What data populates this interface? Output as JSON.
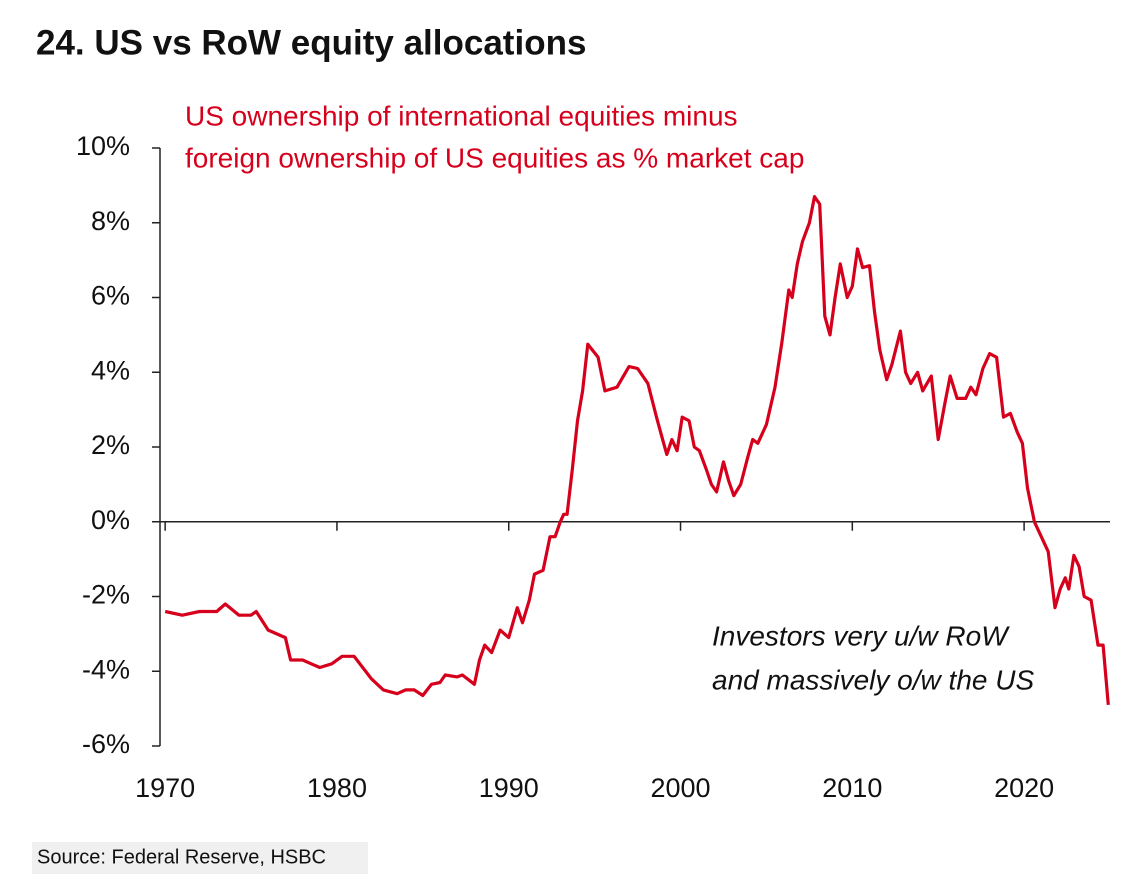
{
  "chart_data": {
    "type": "line",
    "title": "24. US vs RoW equity allocations",
    "subtitle": [
      "US ownership of international equities minus",
      "foreign ownership of US equities as % market cap"
    ],
    "annotation": [
      "Investors very u/w RoW",
      "and massively o/w the US"
    ],
    "source": "Source: Federal Reserve, HSBC",
    "color": "#d6001c",
    "xlim": [
      1969.7,
      2025.0
    ],
    "xticks": [
      1970,
      1980,
      1990,
      2000,
      2010,
      2020
    ],
    "ylim": [
      -6,
      10
    ],
    "yticks": [
      {
        "value": 10,
        "label": "10%"
      },
      {
        "value": 8,
        "label": "8%"
      },
      {
        "value": 6,
        "label": "6%"
      },
      {
        "value": 4,
        "label": "4%"
      },
      {
        "value": 2,
        "label": "2%"
      },
      {
        "value": 0,
        "label": "0%"
      },
      {
        "value": -2,
        "label": "-2%"
      },
      {
        "value": -4,
        "label": "-4%"
      },
      {
        "value": -6,
        "label": "-6%"
      }
    ],
    "x": [
      1970,
      1971,
      1972,
      1973,
      1973.5,
      1974.3,
      1975,
      1975.3,
      1976,
      1976.5,
      1977,
      1977.3,
      1978,
      1978.5,
      1979,
      1979.7,
      1980.3,
      1981,
      1981.5,
      1982,
      1982.7,
      1983.5,
      1984,
      1984.5,
      1985,
      1985.5,
      1986,
      1986.3,
      1987,
      1987.3,
      1988,
      1988.3,
      1988.6,
      1989,
      1989.5,
      1990,
      1990.5,
      1990.8,
      1991.2,
      1991.5,
      1992,
      1992.4,
      1992.7,
      1993.0,
      1993.2,
      1993.4,
      1993.7,
      1994.0,
      1994.3,
      1994.6,
      1995.2,
      1995.6,
      1996.3,
      1997.0,
      1997.5,
      1998.1,
      1998.6,
      1998.9,
      1999.2,
      1999.5,
      1999.8,
      2000.1,
      2000.5,
      2000.8,
      2001.1,
      2001.5,
      2001.8,
      2002.1,
      2002.5,
      2002.8,
      2003.1,
      2003.5,
      2003.9,
      2004.2,
      2004.5,
      2005.0,
      2005.5,
      2005.9,
      2006.3,
      2006.5,
      2006.8,
      2007.1,
      2007.5,
      2007.8,
      2008.1,
      2008.4,
      2008.7,
      2009.0,
      2009.3,
      2009.7,
      2010.0,
      2010.3,
      2010.6,
      2011.0,
      2011.3,
      2011.6,
      2012.0,
      2012.3,
      2012.8,
      2013.1,
      2013.4,
      2013.8,
      2014.1,
      2014.6,
      2015.0,
      2015.4,
      2015.7,
      2016.1,
      2016.6,
      2016.9,
      2017.2,
      2017.6,
      2018.0,
      2018.4,
      2018.8,
      2019.2,
      2019.6,
      2019.9,
      2020.2,
      2020.6,
      2021.0,
      2021.4,
      2021.8,
      2022.1,
      2022.4,
      2022.6,
      2022.9,
      2023.2,
      2023.5,
      2023.9,
      2024.3,
      2024.6,
      2024.9
    ],
    "values": [
      -2.4,
      -2.5,
      -2.4,
      -2.4,
      -2.2,
      -2.5,
      -2.5,
      -2.4,
      -2.9,
      -3.0,
      -3.1,
      -3.7,
      -3.7,
      -3.8,
      -3.9,
      -3.8,
      -3.6,
      -3.6,
      -3.9,
      -4.2,
      -4.5,
      -4.6,
      -4.5,
      -4.5,
      -4.65,
      -4.35,
      -4.3,
      -4.1,
      -4.15,
      -4.1,
      -4.35,
      -3.7,
      -3.3,
      -3.5,
      -2.9,
      -3.1,
      -2.3,
      -2.7,
      -2.1,
      -1.4,
      -1.3,
      -0.4,
      -0.4,
      0.0,
      0.2,
      0.2,
      1.4,
      2.7,
      3.5,
      4.75,
      4.4,
      3.5,
      3.6,
      4.15,
      4.1,
      3.7,
      2.8,
      2.3,
      1.8,
      2.2,
      1.9,
      2.8,
      2.7,
      2.0,
      1.9,
      1.4,
      1.0,
      0.8,
      1.6,
      1.1,
      0.7,
      1.0,
      1.7,
      2.2,
      2.1,
      2.6,
      3.6,
      4.8,
      6.2,
      6.0,
      6.9,
      7.5,
      8.0,
      8.7,
      8.5,
      5.5,
      5.0,
      6.0,
      6.9,
      6.0,
      6.3,
      7.3,
      6.8,
      6.85,
      5.6,
      4.6,
      3.8,
      4.2,
      5.1,
      4.0,
      3.7,
      4.0,
      3.5,
      3.9,
      2.2,
      3.2,
      3.9,
      3.3,
      3.3,
      3.6,
      3.4,
      4.1,
      4.5,
      4.4,
      2.8,
      2.9,
      2.4,
      2.1,
      0.9,
      0.0,
      -0.4,
      -0.8,
      -2.3,
      -1.8,
      -1.5,
      -1.8,
      -0.9,
      -1.2,
      -2.0,
      -2.1,
      -3.3,
      -3.3,
      -4.9
    ]
  }
}
